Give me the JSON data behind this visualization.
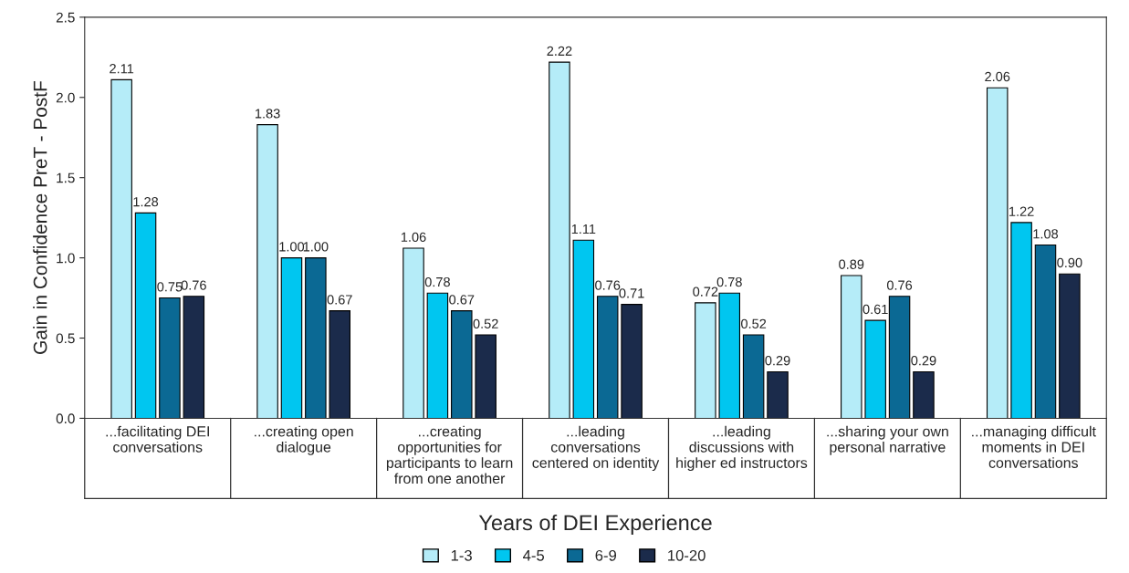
{
  "chart_data": {
    "type": "bar",
    "categories": [
      "...facilitating DEI\nconversations",
      "...creating open\ndialogue",
      "...creating\nopportunities for\nparticipants to learn\nfrom one another",
      "...leading\nconversations\ncentered on identity",
      "...leading\ndiscussions with\nhigher ed instructors",
      "...sharing your own\npersonal narrative",
      "...managing difficult\nmoments in DEI\nconversations"
    ],
    "series": [
      {
        "name": "1-3",
        "color": "#b5ecf8",
        "values": [
          2.11,
          1.83,
          1.06,
          2.22,
          0.72,
          0.89,
          2.06
        ],
        "value_labels": [
          "2.11",
          "1.83",
          "1.06",
          "2.22",
          "0.72",
          "0.89",
          "2.06"
        ]
      },
      {
        "name": "4-5",
        "color": "#00c6f0",
        "values": [
          1.28,
          1.0,
          0.78,
          1.11,
          0.78,
          0.61,
          1.22
        ],
        "value_labels": [
          "1.28",
          "1.00",
          "0.78",
          "1.11",
          "0.78",
          "0.61",
          "1.22"
        ]
      },
      {
        "name": "6-9",
        "color": "#0b6994",
        "values": [
          0.75,
          1.0,
          0.67,
          0.76,
          0.52,
          0.76,
          1.08
        ],
        "value_labels": [
          "0.75",
          "1.00",
          "0.67",
          "0.76",
          "0.52",
          "0.76",
          "1.08"
        ]
      },
      {
        "name": "10-20",
        "color": "#1b2b4b",
        "values": [
          0.76,
          0.67,
          0.52,
          0.71,
          0.29,
          0.29,
          0.9
        ],
        "value_labels": [
          "0.76",
          "0.67",
          "0.52",
          "0.71",
          "0.29",
          "0.29",
          "0.90"
        ]
      }
    ],
    "xlabel": "Years of DEI Experience",
    "ylabel": "Gain in Confidence PreT - PostF",
    "ylim": [
      0,
      2.5
    ],
    "yticks": [
      {
        "value": 0,
        "label": "0.0"
      },
      0.5,
      {
        "value": 1,
        "label": "1.0"
      },
      1.5,
      {
        "value": 2,
        "label": "2.0"
      },
      2.5
    ],
    "grid": false,
    "legend": "bottom"
  }
}
